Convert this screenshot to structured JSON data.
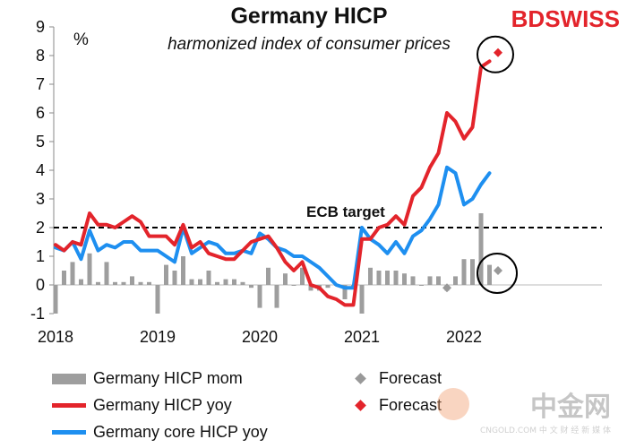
{
  "header": {
    "title": "Germany HICP",
    "subtitle": "harmonized index of consumer prices",
    "brand_part1": "BD",
    "brand_part2": "SWISS",
    "unit": "%"
  },
  "annotation": {
    "ecb_label": "ECB target"
  },
  "watermark": {
    "main": "中金网",
    "sub": "CNGOLD.COM 中 文 财 经 新 媒 体"
  },
  "legend": [
    {
      "label": "Germany HICP mom",
      "kind": "bar",
      "color": "#9e9e9e"
    },
    {
      "label": "Germany HICP yoy",
      "kind": "line",
      "color": "#e3242b"
    },
    {
      "label": "Germany core HICP yoy",
      "kind": "line",
      "color": "#1e8ff0"
    },
    {
      "label": "Forecast",
      "kind": "diamond",
      "color": "#999999"
    },
    {
      "label": "Forecast",
      "kind": "diamond",
      "color": "#e3242b"
    }
  ],
  "colors": {
    "mom": "#9e9e9e",
    "yoy": "#e3242b",
    "core": "#1e8ff0",
    "target": "#000000"
  },
  "chart_data": {
    "type": "line",
    "title": "Germany HICP",
    "subtitle": "harmonized index of consumer prices",
    "ylabel": "%",
    "ylim": [
      -1,
      9
    ],
    "yticks": [
      -1,
      0,
      1,
      2,
      3,
      4,
      5,
      6,
      7,
      8,
      9
    ],
    "x_start": "2018-01",
    "xticks": [
      "2018",
      "2019",
      "2020",
      "2021",
      "2022"
    ],
    "ecb_target": 2,
    "series": [
      {
        "name": "Germany HICP mom",
        "type": "bar",
        "values": [
          -1.0,
          0.5,
          0.8,
          0.2,
          1.1,
          0.1,
          0.8,
          0.1,
          0.1,
          0.3,
          0.1,
          0.1,
          -1.0,
          0.7,
          0.5,
          1.0,
          0.2,
          0.2,
          0.5,
          0.1,
          0.2,
          0.2,
          0.1,
          -0.1,
          -0.8,
          0.6,
          -0.8,
          0.4,
          0.0,
          0.6,
          -0.2,
          -0.2,
          -0.1,
          0.0,
          -0.5,
          -0.1,
          -1.0,
          0.6,
          0.5,
          0.5,
          0.5,
          0.4,
          0.3,
          0.0,
          0.3,
          0.3,
          -0.2,
          0.3,
          0.9,
          0.9,
          2.5,
          0.7
        ]
      },
      {
        "name": "Germany HICP yoy",
        "type": "line",
        "values": [
          1.4,
          1.2,
          1.5,
          1.4,
          2.5,
          2.1,
          2.1,
          2.0,
          2.2,
          2.4,
          2.2,
          1.7,
          1.7,
          1.7,
          1.4,
          2.1,
          1.3,
          1.5,
          1.1,
          1.0,
          0.9,
          0.9,
          1.2,
          1.5,
          1.6,
          1.7,
          1.3,
          0.8,
          0.5,
          0.8,
          0.0,
          -0.1,
          -0.4,
          -0.5,
          -0.7,
          -0.7,
          1.6,
          1.6,
          2.0,
          2.1,
          2.4,
          2.1,
          3.1,
          3.4,
          4.1,
          4.6,
          6.0,
          5.7,
          5.1,
          5.5,
          7.6,
          7.8
        ]
      },
      {
        "name": "Germany core HICP yoy",
        "type": "line",
        "values": [
          1.3,
          1.2,
          1.5,
          0.9,
          1.9,
          1.2,
          1.4,
          1.3,
          1.5,
          1.5,
          1.2,
          1.2,
          1.2,
          1.0,
          0.8,
          2.0,
          1.1,
          1.3,
          1.5,
          1.4,
          1.1,
          1.1,
          1.2,
          1.1,
          1.8,
          1.6,
          1.3,
          1.2,
          1.0,
          1.0,
          0.8,
          0.6,
          0.3,
          0.0,
          -0.1,
          -0.1,
          2.0,
          1.6,
          1.4,
          1.1,
          1.5,
          1.1,
          1.7,
          1.9,
          2.3,
          2.8,
          4.1,
          3.9,
          2.8,
          3.0,
          3.5,
          3.9
        ]
      },
      {
        "name": "Forecast",
        "type": "point",
        "marker": "diamond",
        "color": "#999999",
        "points": [
          {
            "x": "2021-11",
            "y": -0.1
          },
          {
            "x": "2022-05",
            "y": 0.5
          }
        ]
      },
      {
        "name": "Forecast",
        "type": "point",
        "marker": "diamond",
        "color": "#e3242b",
        "points": [
          {
            "x": "2022-05",
            "y": 8.1
          }
        ]
      }
    ],
    "circles": [
      "forecast HICP yoy",
      "forecast HICP mom"
    ],
    "grid": false,
    "legend_position": "bottom"
  }
}
